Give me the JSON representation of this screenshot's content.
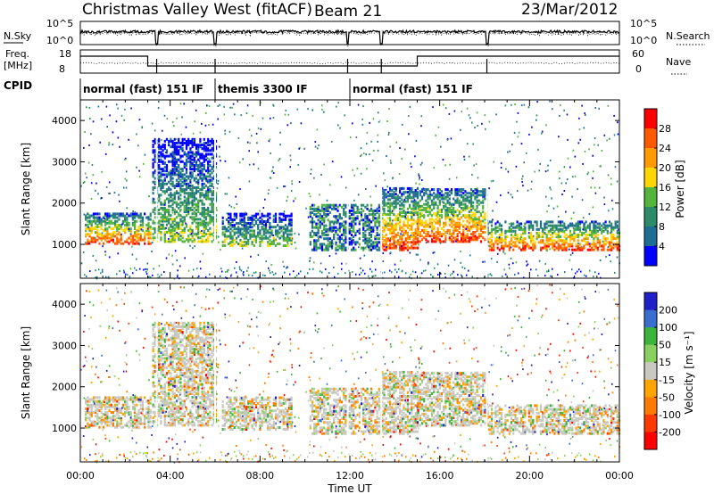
{
  "header": {
    "title": "Christmas Valley West (fitACF)",
    "beam": "Beam 21",
    "date": "23/Mar/2012"
  },
  "top_panel": {
    "left_label": "N.Sky",
    "right_label": "N.Search",
    "left_ticks": [
      "10^5",
      "10^0"
    ],
    "right_ticks": [
      "10^5",
      "10^0"
    ]
  },
  "freq_panel": {
    "left_label_line1": "Freq.",
    "left_label_line2": "[MHz]",
    "right_label": "Nave",
    "left_ticks": [
      "18",
      "8"
    ],
    "right_ticks": [
      "60",
      "0"
    ]
  },
  "cpid": {
    "label": "CPID",
    "modes": [
      {
        "name": "normal (fast) 151 IF",
        "start_hour": 0,
        "end_hour": 6
      },
      {
        "name": "themis 3300 IF",
        "start_hour": 6,
        "end_hour": 12
      },
      {
        "name": "normal (fast) 151 IF",
        "start_hour": 12,
        "end_hour": 24
      }
    ]
  },
  "chart_data": [
    {
      "type": "heatmap",
      "title": "Power",
      "ylabel": "Slant Range [km]",
      "xlabel": "",
      "xlim": [
        0,
        24
      ],
      "ylim": [
        180,
        4500
      ],
      "yticks": [
        1000,
        2000,
        3000,
        4000
      ],
      "colorbar": {
        "label": "Power [dB]",
        "ticks": [
          "28",
          "24",
          "20",
          "16",
          "12",
          "8",
          "4"
        ],
        "colors": [
          "#ff0000",
          "#ff5a00",
          "#ff9a00",
          "#ffd700",
          "#55b43c",
          "#2e8b6a",
          "#1e6d94",
          "#0000ff"
        ]
      },
      "bands": [
        {
          "x_start": 0.2,
          "x_end": 3.1,
          "range_low": 1050,
          "range_high": 1800,
          "level": "high"
        },
        {
          "x_start": 3.2,
          "x_end": 6.0,
          "range_low": 1100,
          "range_high": 3600,
          "level": "mid"
        },
        {
          "x_start": 6.3,
          "x_end": 9.4,
          "range_low": 1000,
          "range_high": 1800,
          "level": "mid"
        },
        {
          "x_start": 10.2,
          "x_end": 13.4,
          "range_low": 900,
          "range_high": 2000,
          "level": "low"
        },
        {
          "x_start": 13.4,
          "x_end": 15.0,
          "range_low": 900,
          "range_high": 2400,
          "level": "high"
        },
        {
          "x_start": 15.0,
          "x_end": 18.1,
          "range_low": 1100,
          "range_high": 2400,
          "level": "high"
        },
        {
          "x_start": 18.1,
          "x_end": 24.0,
          "range_low": 900,
          "range_high": 1600,
          "level": "high"
        }
      ]
    },
    {
      "type": "heatmap",
      "title": "Velocity",
      "ylabel": "Slant Range [km]",
      "xlabel": "Time UT",
      "xlim": [
        0,
        24
      ],
      "ylim": [
        180,
        4500
      ],
      "yticks": [
        1000,
        2000,
        3000,
        4000
      ],
      "xticks": [
        "00:00",
        "04:00",
        "08:00",
        "12:00",
        "16:00",
        "20:00",
        "00:00"
      ],
      "colorbar": {
        "label": "Velocity [m s⁻¹]",
        "ticks": [
          "200",
          "100",
          "50",
          "15",
          "-15",
          "-50",
          "-100",
          "-200"
        ],
        "colors": [
          "#2020c8",
          "#3a6ecf",
          "#3cb43c",
          "#88d060",
          "#c8c8c0",
          "#ffa500",
          "#ff7a00",
          "#ff3a00",
          "#ff0000"
        ]
      }
    }
  ]
}
